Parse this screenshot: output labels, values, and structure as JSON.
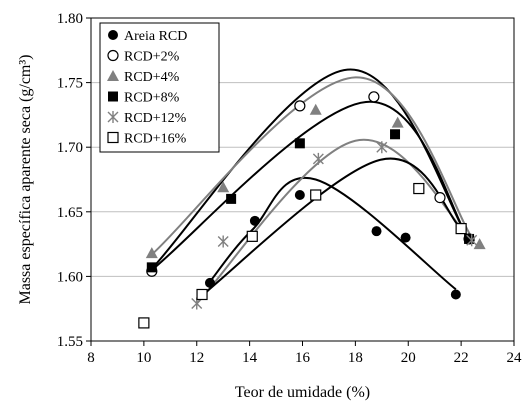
{
  "chart_data": {
    "type": "scatter",
    "xlabel": "Teor de umidade (%)",
    "ylabel": "Massa específica aparente seca (g/cm³)",
    "xlim": [
      8,
      24
    ],
    "ylim": [
      1.55,
      1.8
    ],
    "x_ticks": [
      8,
      10,
      12,
      14,
      16,
      18,
      20,
      22,
      24
    ],
    "y_ticks": [
      1.55,
      1.6,
      1.65,
      1.7,
      1.75,
      1.8
    ],
    "x_tick_labels": [
      "8",
      "10",
      "12",
      "14",
      "16",
      "18",
      "20",
      "22",
      "24"
    ],
    "y_tick_labels": [
      "1.55",
      "1.60",
      "1.65",
      "1.70",
      "1.75",
      "1.80"
    ],
    "grid": "horizontal",
    "legend_position": "top-left",
    "series": [
      {
        "name": "Areia RCD",
        "marker": "filled-circle",
        "marker_color": "#000000",
        "curve_color": "#000000",
        "points": [
          [
            12.5,
            1.595
          ],
          [
            14.2,
            1.643
          ],
          [
            15.9,
            1.663
          ],
          [
            18.8,
            1.635
          ],
          [
            19.9,
            1.63
          ],
          [
            21.8,
            1.586
          ]
        ],
        "curve": [
          [
            12.5,
            1.596
          ],
          [
            14.1,
            1.636
          ],
          [
            16.5,
            1.675
          ],
          [
            21.8,
            1.59
          ]
        ]
      },
      {
        "name": "RCD+2%",
        "marker": "open-circle",
        "marker_color": "#000000",
        "curve_color": "#000000",
        "points": [
          [
            10.3,
            1.604
          ],
          [
            15.9,
            1.732
          ],
          [
            18.7,
            1.739
          ],
          [
            21.2,
            1.661
          ],
          [
            22.3,
            1.629
          ]
        ],
        "curve": [
          [
            10.3,
            1.606
          ],
          [
            17.7,
            1.76
          ],
          [
            22.3,
            1.629
          ]
        ]
      },
      {
        "name": "RCD+4%",
        "marker": "triangle",
        "marker_color": "#808080",
        "curve_color": "#808080",
        "points": [
          [
            10.3,
            1.618
          ],
          [
            13.0,
            1.669
          ],
          [
            16.5,
            1.729
          ],
          [
            19.6,
            1.719
          ],
          [
            22.7,
            1.625
          ]
        ],
        "curve": [
          [
            10.3,
            1.617
          ],
          [
            18.0,
            1.754
          ],
          [
            22.5,
            1.627
          ]
        ]
      },
      {
        "name": "RCD+8%",
        "marker": "filled-square",
        "marker_color": "#000000",
        "curve_color": "#000000",
        "points": [
          [
            10.3,
            1.607
          ],
          [
            13.3,
            1.66
          ],
          [
            15.9,
            1.703
          ],
          [
            19.5,
            1.71
          ],
          [
            22.3,
            1.629
          ]
        ],
        "curve": [
          [
            10.3,
            1.605
          ],
          [
            18.4,
            1.735
          ],
          [
            22.3,
            1.629
          ]
        ]
      },
      {
        "name": "RCD+12%",
        "marker": "asterisk",
        "marker_color": "#808080",
        "curve_color": "#808080",
        "points": [
          [
            12.0,
            1.579
          ],
          [
            13.0,
            1.627
          ],
          [
            16.6,
            1.691
          ],
          [
            19.0,
            1.7
          ],
          [
            22.4,
            1.628
          ]
        ],
        "curve": [
          [
            12.0,
            1.579
          ],
          [
            18.0,
            1.705
          ],
          [
            22.4,
            1.628
          ]
        ]
      },
      {
        "name": "RCD+16%",
        "marker": "open-square",
        "marker_color": "#000000",
        "curve_color": "#000000",
        "points": [
          [
            10.0,
            1.564
          ],
          [
            12.2,
            1.586
          ],
          [
            14.1,
            1.631
          ],
          [
            16.5,
            1.663
          ],
          [
            20.4,
            1.668
          ],
          [
            22.0,
            1.637
          ]
        ],
        "curve": [
          [
            12.0,
            1.582
          ],
          [
            18.9,
            1.69
          ],
          [
            22.0,
            1.637
          ]
        ]
      }
    ]
  }
}
